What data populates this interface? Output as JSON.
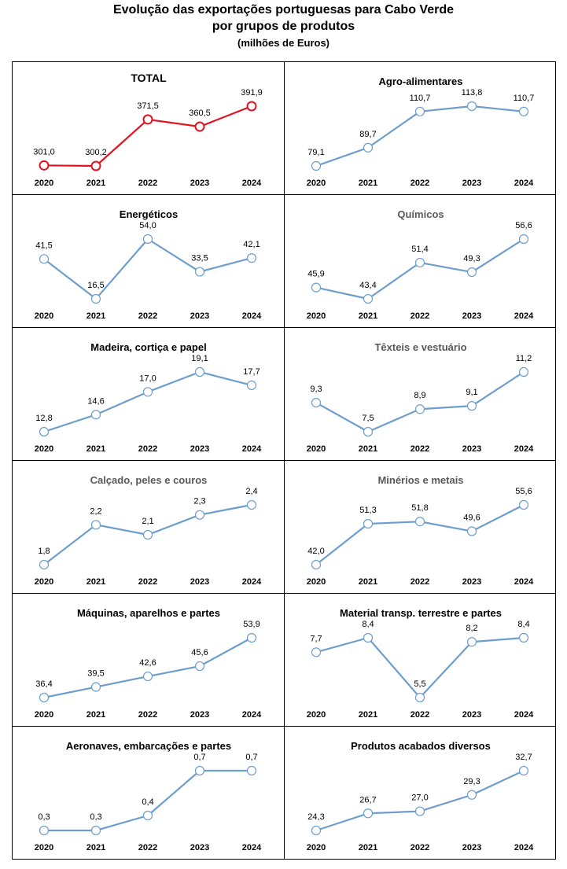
{
  "title": {
    "line1": "Evolução das exportações portuguesas para Cabo Verde",
    "line2": "por grupos de produtos",
    "units": "(milhões de Euros)"
  },
  "colors": {
    "total_line": "#e0141e",
    "group_line": "#6d9ecd",
    "marker_fill": "#ffffff"
  },
  "chart_data": [
    {
      "type": "line",
      "title": "TOTAL",
      "categories": [
        "2020",
        "2021",
        "2022",
        "2023",
        "2024"
      ],
      "values": [
        301.0,
        300.2,
        371.5,
        360.5,
        391.9
      ],
      "labels": [
        "301,0",
        "300,2",
        "371,5",
        "360,5",
        "391,9"
      ]
    },
    {
      "type": "line",
      "title": "Agro-alimentares",
      "categories": [
        "2020",
        "2021",
        "2022",
        "2023",
        "2024"
      ],
      "values": [
        79.1,
        89.7,
        110.7,
        113.8,
        110.7
      ],
      "labels": [
        "79,1",
        "89,7",
        "110,7",
        "113,8",
        "110,7"
      ]
    },
    {
      "type": "line",
      "title": "Energéticos",
      "categories": [
        "2020",
        "2021",
        "2022",
        "2023",
        "2024"
      ],
      "values": [
        41.5,
        16.5,
        54.0,
        33.5,
        42.1
      ],
      "labels": [
        "41,5",
        "16,5",
        "54,0",
        "33,5",
        "42,1"
      ]
    },
    {
      "type": "line",
      "title": "Químicos",
      "categories": [
        "2020",
        "2021",
        "2022",
        "2023",
        "2024"
      ],
      "values": [
        45.9,
        43.4,
        51.4,
        49.3,
        56.6
      ],
      "labels": [
        "45,9",
        "43,4",
        "51,4",
        "49,3",
        "56,6"
      ]
    },
    {
      "type": "line",
      "title": "Madeira, cortiça e papel",
      "categories": [
        "2020",
        "2021",
        "2022",
        "2023",
        "2024"
      ],
      "values": [
        12.8,
        14.6,
        17.0,
        19.1,
        17.7
      ],
      "labels": [
        "12,8",
        "14,6",
        "17,0",
        "19,1",
        "17,7"
      ]
    },
    {
      "type": "line",
      "title": "Têxteis e vestuário",
      "categories": [
        "2020",
        "2021",
        "2022",
        "2023",
        "2024"
      ],
      "values": [
        9.3,
        7.5,
        8.9,
        9.1,
        11.2
      ],
      "labels": [
        "9,3",
        "7,5",
        "8,9",
        "9,1",
        "11,2"
      ]
    },
    {
      "type": "line",
      "title": "Calçado, peles e couros",
      "categories": [
        "2020",
        "2021",
        "2022",
        "2023",
        "2024"
      ],
      "values": [
        1.8,
        2.2,
        2.1,
        2.3,
        2.4
      ],
      "labels": [
        "1,8",
        "2,2",
        "2,1",
        "2,3",
        "2,4"
      ]
    },
    {
      "type": "line",
      "title": "Minérios e metais",
      "categories": [
        "2020",
        "2021",
        "2022",
        "2023",
        "2024"
      ],
      "values": [
        42.0,
        51.3,
        51.8,
        49.6,
        55.6
      ],
      "labels": [
        "42,0",
        "51,3",
        "51,8",
        "49,6",
        "55,6"
      ]
    },
    {
      "type": "line",
      "title": "Máquinas, aparelhos e partes",
      "categories": [
        "2020",
        "2021",
        "2022",
        "2023",
        "2024"
      ],
      "values": [
        36.4,
        39.5,
        42.6,
        45.6,
        53.9
      ],
      "labels": [
        "36,4",
        "39,5",
        "42,6",
        "45,6",
        "53,9"
      ]
    },
    {
      "type": "line",
      "title": "Material transp. terrestre e partes",
      "categories": [
        "2020",
        "2021",
        "2022",
        "2023",
        "2024"
      ],
      "values": [
        7.7,
        8.4,
        5.5,
        8.2,
        8.4
      ],
      "labels": [
        "7,7",
        "8,4",
        "5,5",
        "8,2",
        "8,4"
      ]
    },
    {
      "type": "line",
      "title": "Aeronaves, embarcações e partes",
      "categories": [
        "2020",
        "2021",
        "2022",
        "2023",
        "2024"
      ],
      "values": [
        0.3,
        0.3,
        0.4,
        0.7,
        0.7
      ],
      "labels": [
        "0,3",
        "0,3",
        "0,4",
        "0,7",
        "0,7"
      ]
    },
    {
      "type": "line",
      "title": "Produtos acabados diversos",
      "categories": [
        "2020",
        "2021",
        "2022",
        "2023",
        "2024"
      ],
      "values": [
        24.3,
        26.7,
        27.0,
        29.3,
        32.7
      ],
      "labels": [
        "24,3",
        "26,7",
        "27,0",
        "29,3",
        "32,7"
      ]
    }
  ]
}
